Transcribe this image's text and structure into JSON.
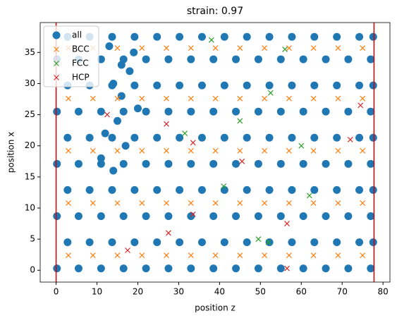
{
  "chart_data": {
    "type": "scatter",
    "title": "strain: 0.97",
    "x_label": "position z",
    "y_label": "position x",
    "xlim": [
      -3.9,
      81.7
    ],
    "ylim": [
      -1.9,
      39.8
    ],
    "xticks": [
      0,
      10,
      20,
      30,
      40,
      50,
      60,
      70,
      80
    ],
    "yticks": [
      0,
      5,
      10,
      15,
      20,
      25,
      30,
      35
    ],
    "legend": "upper left",
    "vlines": {
      "color": "#d40000",
      "x": [
        0,
        77.8
      ]
    },
    "series": [
      {
        "name": "all",
        "color": "#1f77b4",
        "marker": "o",
        "x": [
          0.2,
          5.5,
          11,
          16.5,
          22,
          27.5,
          33,
          38.5,
          44,
          49.5,
          55,
          60.5,
          66,
          71.5,
          77,
          2.8,
          8.2,
          13.7,
          19.2,
          24.7,
          30.2,
          35.7,
          41.2,
          46.7,
          52.2,
          57.7,
          63.2,
          68.7,
          74.2,
          77.6,
          0.2,
          5.5,
          11,
          16.5,
          22,
          27.5,
          33,
          38.5,
          44,
          49.5,
          55,
          60.5,
          66,
          71.5,
          77,
          2.8,
          8.2,
          13.7,
          19.2,
          24.7,
          30.2,
          35.7,
          41.2,
          46.7,
          52.2,
          57.7,
          63.2,
          68.7,
          74.2,
          77.6,
          0.2,
          5.5,
          11,
          16.5,
          22,
          27.5,
          33,
          38.5,
          44,
          49.5,
          55,
          60.5,
          66,
          71.5,
          77,
          2.8,
          8.2,
          13.7,
          19.2,
          24.7,
          30.2,
          35.7,
          41.2,
          46.7,
          52.2,
          57.7,
          63.2,
          68.7,
          74.2,
          77.6,
          0.2,
          5.5,
          11,
          16.5,
          22,
          27.5,
          33,
          38.5,
          44,
          49.5,
          55,
          60.5,
          66,
          71.5,
          77,
          2.8,
          8.2,
          13.7,
          19.2,
          24.7,
          30.2,
          35.7,
          41.2,
          46.7,
          52.2,
          57.7,
          63.2,
          68.7,
          74.2,
          77.6,
          0.2,
          5.5,
          11,
          16.5,
          22,
          27.5,
          33,
          38.5,
          44,
          49.5,
          55,
          60.5,
          66,
          71.5,
          77,
          2.8,
          8.2,
          13.7,
          19.2,
          24.7,
          30.2,
          35.7,
          41.2,
          46.7,
          52.2,
          57.7,
          63.2,
          68.7,
          74.2,
          77.6,
          14,
          16,
          18,
          20,
          12,
          15,
          17,
          19,
          13,
          11,
          14,
          16
        ],
        "y": [
          0.3,
          0.3,
          0.3,
          0.3,
          0.3,
          0.3,
          0.3,
          0.3,
          0.3,
          0.3,
          0.3,
          0.3,
          0.3,
          0.3,
          0.3,
          4.5,
          4.5,
          4.5,
          4.5,
          4.5,
          4.5,
          4.5,
          4.5,
          4.5,
          4.5,
          4.5,
          4.5,
          4.5,
          4.5,
          4.5,
          8.7,
          8.7,
          8.7,
          8.7,
          8.7,
          8.7,
          8.7,
          8.7,
          8.7,
          8.7,
          8.7,
          8.7,
          8.7,
          8.7,
          8.7,
          12.9,
          12.9,
          12.9,
          12.9,
          12.9,
          12.9,
          12.9,
          12.9,
          12.9,
          12.9,
          12.9,
          12.9,
          12.9,
          12.9,
          12.9,
          17.1,
          17.1,
          17.1,
          17.1,
          17.1,
          17.1,
          17.1,
          17.1,
          17.1,
          17.1,
          17.1,
          17.1,
          17.1,
          17.1,
          17.1,
          21.3,
          21.3,
          21.3,
          21.3,
          21.3,
          21.3,
          21.3,
          21.3,
          21.3,
          21.3,
          21.3,
          21.3,
          21.3,
          21.3,
          21.3,
          25.5,
          25.5,
          25.5,
          25.5,
          25.5,
          25.5,
          25.5,
          25.5,
          25.5,
          25.5,
          25.5,
          25.5,
          25.5,
          25.5,
          25.5,
          29.7,
          29.7,
          29.7,
          29.7,
          29.7,
          29.7,
          29.7,
          29.7,
          29.7,
          29.7,
          29.7,
          29.7,
          29.7,
          29.7,
          29.7,
          33.9,
          33.9,
          33.9,
          33.9,
          33.9,
          33.9,
          33.9,
          33.9,
          33.9,
          33.9,
          33.9,
          33.9,
          33.9,
          33.9,
          33.9,
          37.5,
          37.5,
          37.5,
          37.5,
          37.5,
          37.5,
          37.5,
          37.5,
          37.5,
          37.5,
          37.5,
          37.5,
          37.5,
          37.5,
          37.5,
          30,
          28,
          32,
          26,
          22,
          24,
          20,
          35,
          36,
          18,
          16,
          33
        ]
      },
      {
        "name": "BCC",
        "color": "#ff7f0e",
        "marker": "x",
        "x": [
          3,
          9,
          15,
          21,
          27,
          33,
          39,
          45,
          51,
          57,
          63,
          69,
          75,
          3,
          9,
          15,
          21,
          27,
          33,
          39,
          45,
          51,
          57,
          63,
          69,
          75,
          3,
          9,
          15,
          21,
          27,
          33,
          39,
          45,
          51,
          57,
          63,
          69,
          75,
          3,
          9,
          15,
          21,
          27,
          33,
          39,
          45,
          51,
          57,
          63,
          69,
          75,
          3,
          9,
          15,
          21,
          27,
          33,
          39,
          45,
          51,
          57,
          63,
          69,
          75
        ],
        "y": [
          2.4,
          2.4,
          2.4,
          2.4,
          2.4,
          2.4,
          2.4,
          2.4,
          2.4,
          2.4,
          2.4,
          2.4,
          2.4,
          10.8,
          10.8,
          10.8,
          10.8,
          10.8,
          10.8,
          10.8,
          10.8,
          10.8,
          10.8,
          10.8,
          10.8,
          10.8,
          19.2,
          19.2,
          19.2,
          19.2,
          19.2,
          19.2,
          19.2,
          19.2,
          19.2,
          19.2,
          19.2,
          19.2,
          19.2,
          27.6,
          27.6,
          27.6,
          27.6,
          27.6,
          27.6,
          27.6,
          27.6,
          27.6,
          27.6,
          27.6,
          27.6,
          27.6,
          35.7,
          35.7,
          35.7,
          35.7,
          35.7,
          35.7,
          35.7,
          35.7,
          35.7,
          35.7,
          35.7,
          35.7,
          35.7
        ]
      },
      {
        "name": "FCC",
        "color": "#2ca02c",
        "marker": "x",
        "x": [
          38,
          56,
          31.5,
          52.5,
          41,
          52,
          49.5,
          62,
          45,
          60
        ],
        "y": [
          37,
          35.5,
          22,
          28.5,
          13.5,
          4.5,
          5,
          12,
          24,
          20
        ]
      },
      {
        "name": "HCP",
        "color": "#d62728",
        "marker": "x",
        "x": [
          12.5,
          27,
          33.5,
          72,
          45.5,
          33.5,
          56.5,
          56.5,
          74.5,
          17.5,
          27.5
        ],
        "y": [
          25,
          23.5,
          20.5,
          21,
          17.5,
          9,
          7.5,
          0.3,
          26.5,
          3.2,
          6
        ]
      }
    ]
  }
}
